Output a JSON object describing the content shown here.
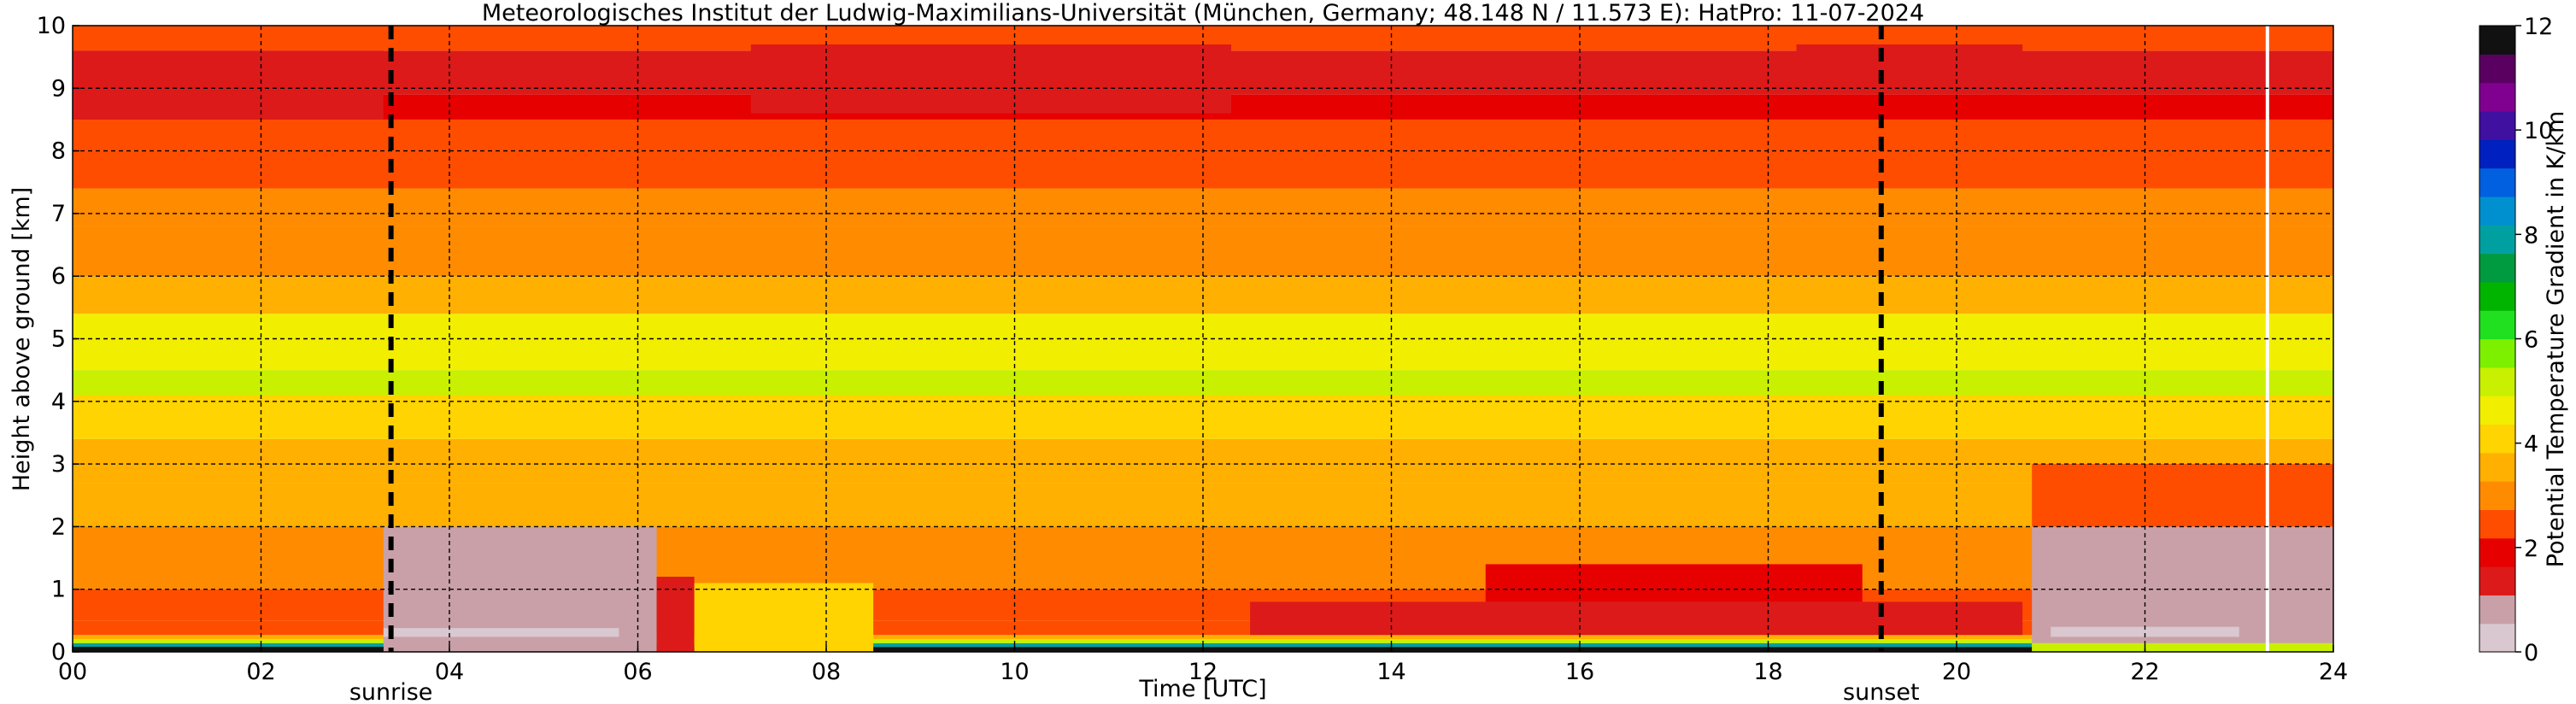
{
  "chart_data": {
    "type": "heatmap",
    "title": "Meteorologisches Institut der Ludwig-Maximilians-Universität (München, Germany; 48.148 N / 11.573 E):    HatPro: 11-07-2024",
    "xlabel": "Time [UTC]",
    "ylabel": "Height above ground [km]",
    "xlim": [
      0,
      24
    ],
    "ylim": [
      0,
      10
    ],
    "x_ticks": [
      "00",
      "02",
      "04",
      "06",
      "08",
      "10",
      "12",
      "14",
      "16",
      "18",
      "20",
      "22",
      "24"
    ],
    "y_ticks": [
      "0",
      "1",
      "2",
      "3",
      "4",
      "5",
      "6",
      "7",
      "8",
      "9",
      "10"
    ],
    "grid": true,
    "colorbar": {
      "label": "Potential Temperature Gradient in K/km",
      "range": [
        0,
        12
      ],
      "ticks": [
        "0",
        "2",
        "4",
        "6",
        "8",
        "10",
        "12"
      ],
      "colors": [
        "#d9c8cf",
        "#c9a0a8",
        "#dc1a1a",
        "#e60000",
        "#ff4d00",
        "#ff8c00",
        "#ffb000",
        "#ffd400",
        "#f2ee00",
        "#c8f000",
        "#7df000",
        "#20e020",
        "#00b400",
        "#009a40",
        "#00a0a0",
        "#0090d0",
        "#0060e0",
        "#0020c0",
        "#4010a0",
        "#800090",
        "#5a0060",
        "#111111"
      ]
    },
    "annotations": [
      {
        "label": "sunrise",
        "x": 3.38
      },
      {
        "label": "sunset",
        "x": 19.2
      }
    ],
    "blank_line_x": 23.3,
    "layers": [
      {
        "from_km": 0.0,
        "to_km": 0.08,
        "value": 12
      },
      {
        "from_km": 0.08,
        "to_km": 0.14,
        "value": 8
      },
      {
        "from_km": 0.14,
        "to_km": 0.2,
        "value": 5
      },
      {
        "from_km": 0.2,
        "to_km": 0.27,
        "value": 3.5
      },
      {
        "from_km": 0.27,
        "to_km": 0.5,
        "value": 2.4
      },
      {
        "from_km": 0.5,
        "to_km": 1.0,
        "value": 2.6
      },
      {
        "from_km": 1.0,
        "to_km": 2.0,
        "value": 3.0
      },
      {
        "from_km": 2.0,
        "to_km": 2.7,
        "value": 3.3
      },
      {
        "from_km": 2.7,
        "to_km": 3.4,
        "value": 3.6
      },
      {
        "from_km": 3.4,
        "to_km": 4.1,
        "value": 4.1
      },
      {
        "from_km": 4.1,
        "to_km": 4.5,
        "value": 5.0
      },
      {
        "from_km": 4.5,
        "to_km": 5.0,
        "value": 4.7
      },
      {
        "from_km": 5.0,
        "to_km": 5.4,
        "value": 4.9
      },
      {
        "from_km": 5.4,
        "to_km": 6.0,
        "value": 3.4
      },
      {
        "from_km": 6.0,
        "to_km": 6.8,
        "value": 3.2
      },
      {
        "from_km": 6.8,
        "to_km": 7.4,
        "value": 3.0
      },
      {
        "from_km": 7.4,
        "to_km": 8.0,
        "value": 2.6
      },
      {
        "from_km": 8.0,
        "to_km": 8.5,
        "value": 2.2
      },
      {
        "from_km": 8.5,
        "to_km": 8.9,
        "value": 1.7
      },
      {
        "from_km": 8.9,
        "to_km": 9.6,
        "value": 1.6
      },
      {
        "from_km": 9.6,
        "to_km": 10.0,
        "value": 2.4
      }
    ],
    "features": [
      {
        "from_h": 3.3,
        "to_h": 6.2,
        "from_km": 0.0,
        "to_km": 2.0,
        "value": 0.9
      },
      {
        "from_h": 6.2,
        "to_h": 6.6,
        "from_km": 0.0,
        "to_km": 1.2,
        "value": 1.3
      },
      {
        "from_h": 3.3,
        "to_h": 5.8,
        "from_km": 0.24,
        "to_km": 0.38,
        "value": 0.3
      },
      {
        "from_h": 6.6,
        "to_h": 8.5,
        "from_km": 0.0,
        "to_km": 1.1,
        "value": 4.0
      },
      {
        "from_h": 12.5,
        "to_h": 20.7,
        "from_km": 0.27,
        "to_km": 0.8,
        "value": 1.2
      },
      {
        "from_h": 15.0,
        "to_h": 19.0,
        "from_km": 0.8,
        "to_km": 1.4,
        "value": 1.8
      },
      {
        "from_h": 20.8,
        "to_h": 24.0,
        "from_km": 0.0,
        "to_km": 2.0,
        "value": 0.9
      },
      {
        "from_h": 20.8,
        "to_h": 24.0,
        "from_km": 2.0,
        "to_km": 3.0,
        "value": 2.6
      },
      {
        "from_h": 21.0,
        "to_h": 23.0,
        "from_km": 0.24,
        "to_km": 0.4,
        "value": 0.4
      },
      {
        "from_h": 0.0,
        "to_h": 3.3,
        "from_km": 8.5,
        "to_km": 9.6,
        "value": 1.1
      },
      {
        "from_h": 7.2,
        "to_h": 12.3,
        "from_km": 8.6,
        "to_km": 9.7,
        "value": 1.1
      },
      {
        "from_h": 18.3,
        "to_h": 20.7,
        "from_km": 8.9,
        "to_km": 9.7,
        "value": 1.3
      },
      {
        "from_h": 0.0,
        "to_h": 3.3,
        "from_km": 0.0,
        "to_km": 0.08,
        "value": 12
      },
      {
        "from_h": 20.8,
        "to_h": 24.0,
        "from_km": 0.0,
        "to_km": 0.14,
        "value": 5
      }
    ]
  }
}
